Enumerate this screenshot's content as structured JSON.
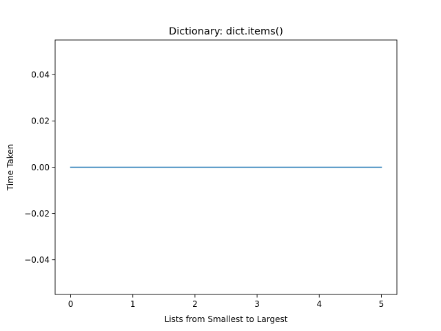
{
  "chart_data": {
    "type": "line",
    "title": "Dictionary: dict.items()",
    "xlabel": "Lists from Smallest to Largest",
    "ylabel": "Time Taken",
    "x": [
      0,
      1,
      2,
      3,
      4,
      5
    ],
    "series": [
      {
        "values": [
          0.0,
          0.0,
          0.0,
          0.0,
          0.0,
          0.0
        ],
        "color": "#1f77b4"
      }
    ],
    "xlim": [
      -0.25,
      5.25
    ],
    "ylim": [
      -0.055,
      0.055
    ],
    "xticks": [
      0,
      1,
      2,
      3,
      4,
      5
    ],
    "xtick_labels": [
      "0",
      "1",
      "2",
      "3",
      "4",
      "5"
    ],
    "yticks": [
      -0.04,
      -0.02,
      0.0,
      0.02,
      0.04
    ],
    "ytick_labels": [
      "−0.04",
      "−0.02",
      "0.00",
      "0.02",
      "0.04"
    ],
    "grid": false,
    "legend": false
  }
}
